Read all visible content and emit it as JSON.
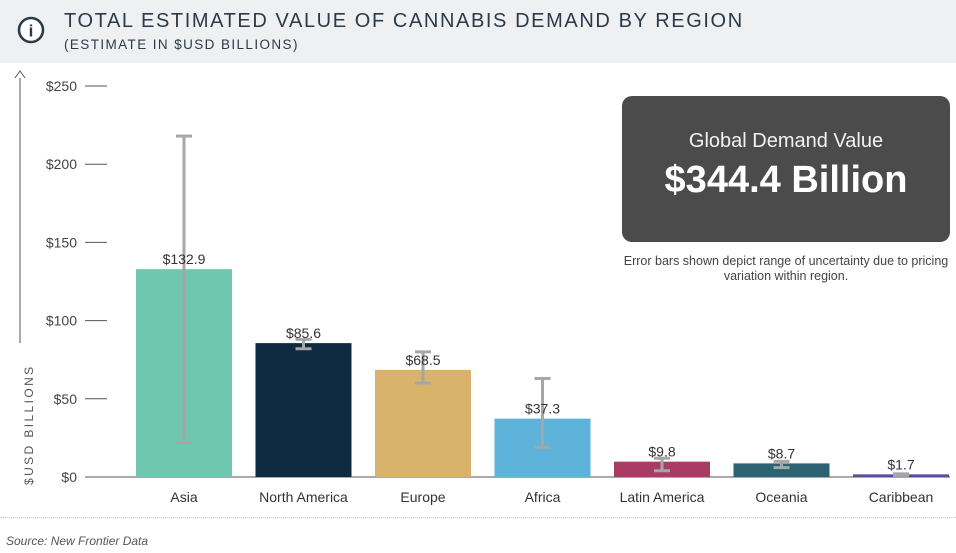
{
  "header": {
    "title": "TOTAL ESTIMATED VALUE OF CANNABIS DEMAND BY REGION",
    "subtitle": "(ESTIMATE IN $USD BILLIONS)",
    "icon": "info-icon",
    "icon_glyph": "i"
  },
  "kpi": {
    "label": "Global Demand Value",
    "value": "$344.4 Billion"
  },
  "note": "Error bars shown depict range of uncertainty due to pricing variation within region.",
  "source": "Source: New Frontier Data",
  "chart_data": {
    "type": "bar",
    "title": "TOTAL ESTIMATED VALUE OF CANNABIS DEMAND BY REGION",
    "subtitle": "(ESTIMATE IN $USD BILLIONS)",
    "ylabel": "$USD BILLIONS",
    "xlabel": "",
    "ylim": [
      0,
      250
    ],
    "yticks": [
      0,
      50,
      100,
      150,
      200,
      250
    ],
    "ytick_labels": [
      "$0",
      "$50",
      "$100",
      "$150",
      "$200",
      "$250"
    ],
    "categories": [
      "Asia",
      "North America",
      "Europe",
      "Africa",
      "Latin America",
      "Oceania",
      "Caribbean"
    ],
    "values": [
      132.9,
      85.6,
      68.5,
      37.3,
      9.8,
      8.7,
      1.7
    ],
    "value_labels": [
      "$132.9",
      "$85.6",
      "$68.5",
      "$37.3",
      "$9.8",
      "$8.7",
      "$1.7"
    ],
    "error_low": [
      22,
      82,
      60,
      19,
      4,
      6,
      1
    ],
    "error_high": [
      218,
      88,
      80,
      63,
      12,
      10,
      2
    ],
    "colors": [
      "#6fc7b0",
      "#0d2a40",
      "#d9b26b",
      "#5db3da",
      "#a83c63",
      "#2d6272",
      "#5d4c96"
    ],
    "grid": false
  }
}
